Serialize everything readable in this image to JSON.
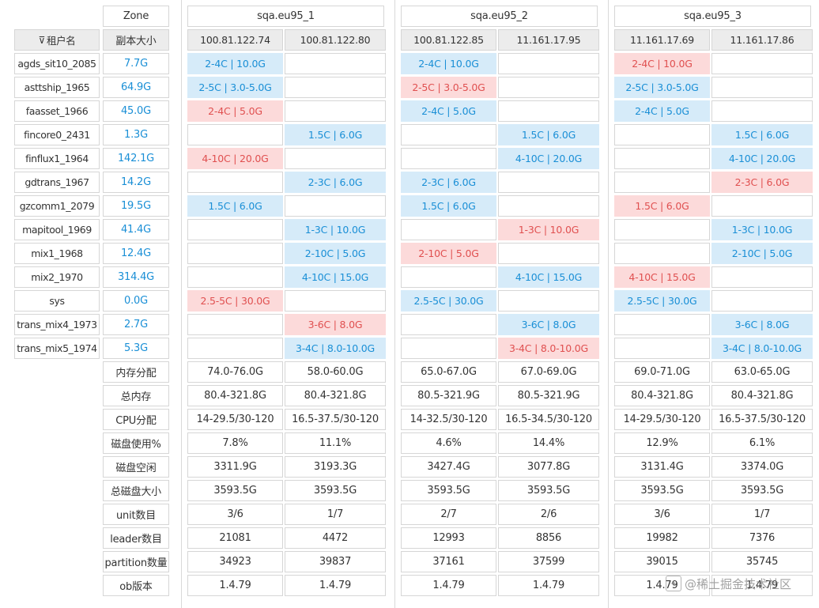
{
  "zone_label": "Zone",
  "zones": [
    "sqa.eu95_1",
    "sqa.eu95_2",
    "sqa.eu95_3"
  ],
  "header": {
    "tenant_label": "租户名",
    "replica_size_label": "副本大小"
  },
  "ips": [
    "100.81.122.74",
    "100.81.122.80",
    "100.81.122.85",
    "11.161.17.95",
    "11.161.17.69",
    "11.161.17.86"
  ],
  "tenants": [
    {
      "name": "agds_sit10_2085",
      "size": "7.7G",
      "cells": [
        {
          "t": "2-4C | 10.0G",
          "c": "blue"
        },
        null,
        {
          "t": "2-4C | 10.0G",
          "c": "blue"
        },
        null,
        {
          "t": "2-4C | 10.0G",
          "c": "red"
        },
        null
      ]
    },
    {
      "name": "asttship_1965",
      "size": "64.9G",
      "cells": [
        {
          "t": "2-5C | 3.0-5.0G",
          "c": "blue"
        },
        null,
        {
          "t": "2-5C | 3.0-5.0G",
          "c": "red"
        },
        null,
        {
          "t": "2-5C | 3.0-5.0G",
          "c": "blue"
        },
        null
      ]
    },
    {
      "name": "faasset_1966",
      "size": "45.0G",
      "cells": [
        {
          "t": "2-4C | 5.0G",
          "c": "red"
        },
        null,
        {
          "t": "2-4C | 5.0G",
          "c": "blue"
        },
        null,
        {
          "t": "2-4C | 5.0G",
          "c": "blue"
        },
        null
      ]
    },
    {
      "name": "fincore0_2431",
      "size": "1.3G",
      "cells": [
        null,
        {
          "t": "1.5C | 6.0G",
          "c": "blue"
        },
        null,
        {
          "t": "1.5C | 6.0G",
          "c": "blue"
        },
        null,
        {
          "t": "1.5C | 6.0G",
          "c": "blue"
        }
      ]
    },
    {
      "name": "finflux1_1964",
      "size": "142.1G",
      "cells": [
        {
          "t": "4-10C | 20.0G",
          "c": "red"
        },
        null,
        null,
        {
          "t": "4-10C | 20.0G",
          "c": "blue"
        },
        null,
        {
          "t": "4-10C | 20.0G",
          "c": "blue"
        }
      ]
    },
    {
      "name": "gdtrans_1967",
      "size": "14.2G",
      "cells": [
        null,
        {
          "t": "2-3C | 6.0G",
          "c": "blue"
        },
        {
          "t": "2-3C | 6.0G",
          "c": "blue"
        },
        null,
        null,
        {
          "t": "2-3C | 6.0G",
          "c": "red"
        }
      ]
    },
    {
      "name": "gzcomm1_2079",
      "size": "19.5G",
      "cells": [
        {
          "t": "1.5C | 6.0G",
          "c": "blue"
        },
        null,
        {
          "t": "1.5C | 6.0G",
          "c": "blue"
        },
        null,
        {
          "t": "1.5C | 6.0G",
          "c": "red"
        },
        null
      ]
    },
    {
      "name": "mapitool_1969",
      "size": "41.4G",
      "cells": [
        null,
        {
          "t": "1-3C | 10.0G",
          "c": "blue"
        },
        null,
        {
          "t": "1-3C | 10.0G",
          "c": "red"
        },
        null,
        {
          "t": "1-3C | 10.0G",
          "c": "blue"
        }
      ]
    },
    {
      "name": "mix1_1968",
      "size": "12.4G",
      "cells": [
        null,
        {
          "t": "2-10C | 5.0G",
          "c": "blue"
        },
        {
          "t": "2-10C | 5.0G",
          "c": "red"
        },
        null,
        null,
        {
          "t": "2-10C | 5.0G",
          "c": "blue"
        }
      ]
    },
    {
      "name": "mix2_1970",
      "size": "314.4G",
      "cells": [
        null,
        {
          "t": "4-10C | 15.0G",
          "c": "blue"
        },
        null,
        {
          "t": "4-10C | 15.0G",
          "c": "blue"
        },
        {
          "t": "4-10C | 15.0G",
          "c": "red"
        },
        null
      ]
    },
    {
      "name": "sys",
      "size": "0.0G",
      "cells": [
        {
          "t": "2.5-5C | 30.0G",
          "c": "red"
        },
        null,
        {
          "t": "2.5-5C | 30.0G",
          "c": "blue"
        },
        null,
        {
          "t": "2.5-5C | 30.0G",
          "c": "blue"
        },
        null
      ]
    },
    {
      "name": "trans_mix4_1973",
      "size": "2.7G",
      "cells": [
        null,
        {
          "t": "3-6C | 8.0G",
          "c": "red"
        },
        null,
        {
          "t": "3-6C | 8.0G",
          "c": "blue"
        },
        null,
        {
          "t": "3-6C | 8.0G",
          "c": "blue"
        }
      ]
    },
    {
      "name": "trans_mix5_1974",
      "size": "5.3G",
      "cells": [
        null,
        {
          "t": "3-4C | 8.0-10.0G",
          "c": "blue"
        },
        null,
        {
          "t": "3-4C | 8.0-10.0G",
          "c": "red"
        },
        null,
        {
          "t": "3-4C | 8.0-10.0G",
          "c": "blue"
        }
      ]
    }
  ],
  "stats": [
    {
      "label": "内存分配",
      "values": [
        "74.0-76.0G",
        "58.0-60.0G",
        "65.0-67.0G",
        "67.0-69.0G",
        "69.0-71.0G",
        "63.0-65.0G"
      ]
    },
    {
      "label": "总内存",
      "values": [
        "80.4-321.8G",
        "80.4-321.8G",
        "80.5-321.9G",
        "80.5-321.9G",
        "80.4-321.8G",
        "80.4-321.8G"
      ]
    },
    {
      "label": "CPU分配",
      "values": [
        "14-29.5/30-120",
        "16.5-37.5/30-120",
        "14-32.5/30-120",
        "16.5-34.5/30-120",
        "14-29.5/30-120",
        "16.5-37.5/30-120"
      ]
    },
    {
      "label": "磁盘使用%",
      "values": [
        "7.8%",
        "11.1%",
        "4.6%",
        "14.4%",
        "12.9%",
        "6.1%"
      ]
    },
    {
      "label": "磁盘空闲",
      "values": [
        "3311.9G",
        "3193.3G",
        "3427.4G",
        "3077.8G",
        "3131.4G",
        "3374.0G"
      ]
    },
    {
      "label": "总磁盘大小",
      "values": [
        "3593.5G",
        "3593.5G",
        "3593.5G",
        "3593.5G",
        "3593.5G",
        "3593.5G"
      ]
    },
    {
      "label": "unit数目",
      "values": [
        "3/6",
        "1/7",
        "2/7",
        "2/6",
        "3/6",
        "1/7"
      ]
    },
    {
      "label": "leader数目",
      "values": [
        "21081",
        "4472",
        "12993",
        "8856",
        "19982",
        "7376"
      ]
    },
    {
      "label": "partition数量",
      "values": [
        "34923",
        "39837",
        "37161",
        "37599",
        "39015",
        "35745"
      ]
    },
    {
      "label": "ob版本",
      "values": [
        "1.4.79",
        "1.4.79",
        "1.4.79",
        "1.4.79",
        "1.4.79",
        "1.4.79"
      ]
    }
  ],
  "colors": {
    "blue_bg": "#d6ebf9",
    "blue_text": "#1a8fd6",
    "red_bg": "#fcdada",
    "red_text": "#e05050",
    "header_bg": "#ececec"
  },
  "watermark": "@稀土掘金技术社区"
}
